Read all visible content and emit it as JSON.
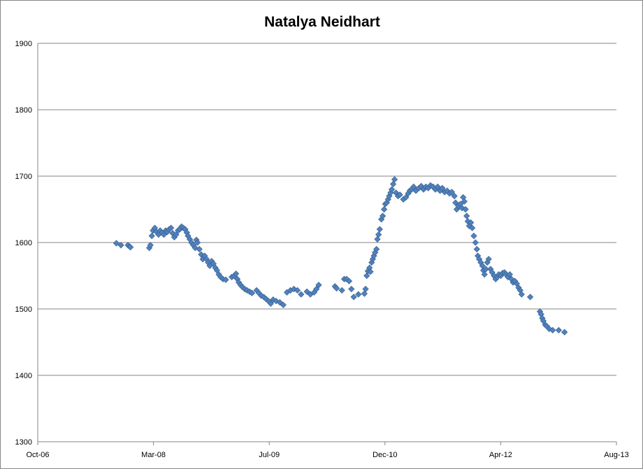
{
  "chart_data": {
    "type": "scatter",
    "title": "Natalya Neidhart",
    "xlabel": "",
    "ylabel": "",
    "marker": "diamond",
    "marker_color": "#4f81bd",
    "grid": "horizontal major gridlines",
    "legend": "none",
    "xlim": [
      "2006-10-01",
      "2013-08-01"
    ],
    "ylim": [
      1300,
      1900
    ],
    "x_ticks": [
      "Oct-06",
      "Mar-08",
      "Jul-09",
      "Dec-10",
      "Apr-12",
      "Aug-13"
    ],
    "y_ticks": [
      1300,
      1400,
      1500,
      1600,
      1700,
      1800,
      1900
    ],
    "series": [
      {
        "points": [
          [
            "2007-09-05",
            1599
          ],
          [
            "2007-09-25",
            1596
          ],
          [
            "2007-10-25",
            1596
          ],
          [
            "2007-11-01",
            1594
          ],
          [
            "2007-11-05",
            1593
          ],
          [
            "2008-01-25",
            1592
          ],
          [
            "2008-01-30",
            1596
          ],
          [
            "2008-02-05",
            1610
          ],
          [
            "2008-02-10",
            1618
          ],
          [
            "2008-02-18",
            1622
          ],
          [
            "2008-02-25",
            1616
          ],
          [
            "2008-03-05",
            1612
          ],
          [
            "2008-03-12",
            1618
          ],
          [
            "2008-03-20",
            1615
          ],
          [
            "2008-03-28",
            1612
          ],
          [
            "2008-04-05",
            1618
          ],
          [
            "2008-04-12",
            1616
          ],
          [
            "2008-04-20",
            1620
          ],
          [
            "2008-04-28",
            1622
          ],
          [
            "2008-05-05",
            1614
          ],
          [
            "2008-05-12",
            1608
          ],
          [
            "2008-05-20",
            1612
          ],
          [
            "2008-05-28",
            1618
          ],
          [
            "2008-06-05",
            1620
          ],
          [
            "2008-06-12",
            1624
          ],
          [
            "2008-06-20",
            1622
          ],
          [
            "2008-06-28",
            1620
          ],
          [
            "2008-07-05",
            1615
          ],
          [
            "2008-07-10",
            1610
          ],
          [
            "2008-07-18",
            1605
          ],
          [
            "2008-07-25",
            1600
          ],
          [
            "2008-08-02",
            1596
          ],
          [
            "2008-08-10",
            1592
          ],
          [
            "2008-08-15",
            1604
          ],
          [
            "2008-08-20",
            1600
          ],
          [
            "2008-08-28",
            1590
          ],
          [
            "2008-09-05",
            1582
          ],
          [
            "2008-09-12",
            1575
          ],
          [
            "2008-09-20",
            1580
          ],
          [
            "2008-09-28",
            1575
          ],
          [
            "2008-10-05",
            1570
          ],
          [
            "2008-10-12",
            1565
          ],
          [
            "2008-10-20",
            1572
          ],
          [
            "2008-10-28",
            1568
          ],
          [
            "2008-11-05",
            1562
          ],
          [
            "2008-11-12",
            1558
          ],
          [
            "2008-11-20",
            1552
          ],
          [
            "2008-11-28",
            1548
          ],
          [
            "2008-12-08",
            1545
          ],
          [
            "2008-12-20",
            1544
          ],
          [
            "2009-01-15",
            1548
          ],
          [
            "2009-01-25",
            1550
          ],
          [
            "2009-02-02",
            1553
          ],
          [
            "2009-02-08",
            1545
          ],
          [
            "2009-02-14",
            1540
          ],
          [
            "2009-02-22",
            1536
          ],
          [
            "2009-03-02",
            1533
          ],
          [
            "2009-03-12",
            1530
          ],
          [
            "2009-03-22",
            1528
          ],
          [
            "2009-04-02",
            1526
          ],
          [
            "2009-04-12",
            1524
          ],
          [
            "2009-05-02",
            1528
          ],
          [
            "2009-05-12",
            1524
          ],
          [
            "2009-05-22",
            1520
          ],
          [
            "2009-06-02",
            1518
          ],
          [
            "2009-06-12",
            1515
          ],
          [
            "2009-06-22",
            1512
          ],
          [
            "2009-07-02",
            1508
          ],
          [
            "2009-07-12",
            1514
          ],
          [
            "2009-07-25",
            1512
          ],
          [
            "2009-08-10",
            1510
          ],
          [
            "2009-08-25",
            1506
          ],
          [
            "2009-09-10",
            1525
          ],
          [
            "2009-09-25",
            1528
          ],
          [
            "2009-10-10",
            1530
          ],
          [
            "2009-10-25",
            1528
          ],
          [
            "2009-11-10",
            1522
          ],
          [
            "2009-12-05",
            1526
          ],
          [
            "2009-12-20",
            1522
          ],
          [
            "2010-01-05",
            1525
          ],
          [
            "2010-01-15",
            1530
          ],
          [
            "2010-01-25",
            1536
          ],
          [
            "2010-04-05",
            1534
          ],
          [
            "2010-04-12",
            1531
          ],
          [
            "2010-05-05",
            1528
          ],
          [
            "2010-05-15",
            1545
          ],
          [
            "2010-05-25",
            1545
          ],
          [
            "2010-06-05",
            1542
          ],
          [
            "2010-06-15",
            1530
          ],
          [
            "2010-06-25",
            1518
          ],
          [
            "2010-07-15",
            1522
          ],
          [
            "2010-08-10",
            1523
          ],
          [
            "2010-08-15",
            1530
          ],
          [
            "2010-08-20",
            1550
          ],
          [
            "2010-08-25",
            1557
          ],
          [
            "2010-09-01",
            1562
          ],
          [
            "2010-09-05",
            1556
          ],
          [
            "2010-09-10",
            1570
          ],
          [
            "2010-09-15",
            1575
          ],
          [
            "2010-09-20",
            1580
          ],
          [
            "2010-09-25",
            1585
          ],
          [
            "2010-10-01",
            1590
          ],
          [
            "2010-10-05",
            1605
          ],
          [
            "2010-10-10",
            1612
          ],
          [
            "2010-10-15",
            1620
          ],
          [
            "2010-10-22",
            1635
          ],
          [
            "2010-10-28",
            1640
          ],
          [
            "2010-11-03",
            1650
          ],
          [
            "2010-11-08",
            1658
          ],
          [
            "2010-11-14",
            1660
          ],
          [
            "2010-11-20",
            1665
          ],
          [
            "2010-11-25",
            1670
          ],
          [
            "2010-12-01",
            1675
          ],
          [
            "2010-12-06",
            1680
          ],
          [
            "2010-12-12",
            1688
          ],
          [
            "2010-12-18",
            1695
          ],
          [
            "2010-12-24",
            1675
          ],
          [
            "2011-01-02",
            1670
          ],
          [
            "2011-01-10",
            1672
          ],
          [
            "2011-01-25",
            1665
          ],
          [
            "2011-02-05",
            1668
          ],
          [
            "2011-02-15",
            1674
          ],
          [
            "2011-02-22",
            1678
          ],
          [
            "2011-03-02",
            1680
          ],
          [
            "2011-03-10",
            1684
          ],
          [
            "2011-03-20",
            1678
          ],
          [
            "2011-04-02",
            1682
          ],
          [
            "2011-04-12",
            1685
          ],
          [
            "2011-04-22",
            1680
          ],
          [
            "2011-05-02",
            1684
          ],
          [
            "2011-05-12",
            1682
          ],
          [
            "2011-05-22",
            1686
          ],
          [
            "2011-06-02",
            1684
          ],
          [
            "2011-06-12",
            1680
          ],
          [
            "2011-06-22",
            1684
          ],
          [
            "2011-07-02",
            1678
          ],
          [
            "2011-07-12",
            1682
          ],
          [
            "2011-07-22",
            1676
          ],
          [
            "2011-08-02",
            1678
          ],
          [
            "2011-08-12",
            1674
          ],
          [
            "2011-08-22",
            1676
          ],
          [
            "2011-09-02",
            1670
          ],
          [
            "2011-09-07",
            1660
          ],
          [
            "2011-09-12",
            1650
          ],
          [
            "2011-09-20",
            1655
          ],
          [
            "2011-09-28",
            1658
          ],
          [
            "2011-10-05",
            1652
          ],
          [
            "2011-10-10",
            1668
          ],
          [
            "2011-10-15",
            1662
          ],
          [
            "2011-10-20",
            1650
          ],
          [
            "2011-10-25",
            1640
          ],
          [
            "2011-10-30",
            1632
          ],
          [
            "2011-11-05",
            1625
          ],
          [
            "2011-11-12",
            1630
          ],
          [
            "2011-11-18",
            1622
          ],
          [
            "2011-11-25",
            1610
          ],
          [
            "2011-12-02",
            1600
          ],
          [
            "2011-12-08",
            1590
          ],
          [
            "2011-12-12",
            1580
          ],
          [
            "2011-12-18",
            1575
          ],
          [
            "2011-12-25",
            1570
          ],
          [
            "2012-01-01",
            1565
          ],
          [
            "2012-01-05",
            1558
          ],
          [
            "2012-01-10",
            1552
          ],
          [
            "2012-01-16",
            1560
          ],
          [
            "2012-01-22",
            1570
          ],
          [
            "2012-01-28",
            1575
          ],
          [
            "2012-02-05",
            1560
          ],
          [
            "2012-02-12",
            1555
          ],
          [
            "2012-02-20",
            1550
          ],
          [
            "2012-02-27",
            1545
          ],
          [
            "2012-03-05",
            1548
          ],
          [
            "2012-03-12",
            1552
          ],
          [
            "2012-03-20",
            1550
          ],
          [
            "2012-03-28",
            1554
          ],
          [
            "2012-04-05",
            1555
          ],
          [
            "2012-04-12",
            1552
          ],
          [
            "2012-04-20",
            1548
          ],
          [
            "2012-04-28",
            1552
          ],
          [
            "2012-05-05",
            1545
          ],
          [
            "2012-05-12",
            1540
          ],
          [
            "2012-05-20",
            1542
          ],
          [
            "2012-05-28",
            1538
          ],
          [
            "2012-06-05",
            1532
          ],
          [
            "2012-06-12",
            1528
          ],
          [
            "2012-06-18",
            1522
          ],
          [
            "2012-07-25",
            1518
          ],
          [
            "2012-09-05",
            1496
          ],
          [
            "2012-09-10",
            1492
          ],
          [
            "2012-09-15",
            1486
          ],
          [
            "2012-09-20",
            1482
          ],
          [
            "2012-09-28",
            1476
          ],
          [
            "2012-10-05",
            1474
          ],
          [
            "2012-10-15",
            1470
          ],
          [
            "2012-10-30",
            1468
          ],
          [
            "2012-11-25",
            1468
          ],
          [
            "2012-12-20",
            1465
          ]
        ]
      }
    ]
  }
}
